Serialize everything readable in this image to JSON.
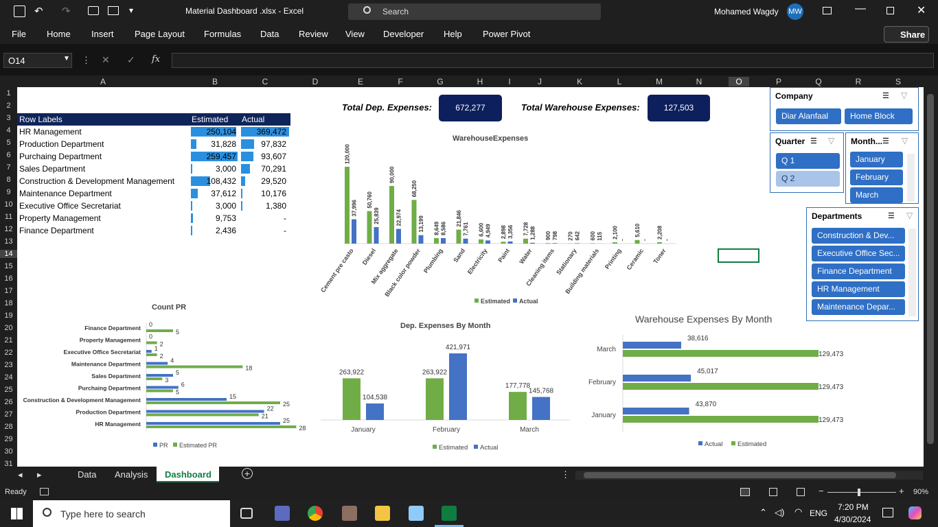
{
  "titlebar": {
    "filename": "Material Dashboard .xlsx",
    "app": "Excel",
    "search": "Search",
    "user": "Mohamed Wagdy",
    "initials": "MW"
  },
  "menu": [
    "File",
    "Home",
    "Insert",
    "Page Layout",
    "Formulas",
    "Data",
    "Review",
    "View",
    "Developer",
    "Help",
    "Power Pivot"
  ],
  "share": "Share",
  "namebox": "O14",
  "fx": "fx",
  "columns": [
    "A",
    "B",
    "C",
    "D",
    "E",
    "F",
    "G",
    "H",
    "I",
    "J",
    "K",
    "L",
    "M",
    "N",
    "O",
    "P",
    "Q",
    "R",
    "S"
  ],
  "rows": [
    "1",
    "2",
    "3",
    "4",
    "5",
    "6",
    "7",
    "8",
    "9",
    "10",
    "11",
    "12",
    "13",
    "14",
    "15",
    "16",
    "17",
    "18",
    "19",
    "20",
    "21",
    "22",
    "23",
    "24",
    "25",
    "26",
    "27",
    "28",
    "29",
    "30",
    "31"
  ],
  "pivot": {
    "headers": [
      "Row Labels",
      "Estimated",
      "Actual"
    ],
    "rows": [
      {
        "label": "HR Management",
        "estimated": "250,104",
        "actual": "369,472",
        "e": 250104,
        "a": 369472
      },
      {
        "label": "Production Department",
        "estimated": "31,828",
        "actual": "97,832",
        "e": 31828,
        "a": 97832
      },
      {
        "label": "Purchaing Department",
        "estimated": "259,457",
        "actual": "93,607",
        "e": 259457,
        "a": 93607
      },
      {
        "label": "Sales Department",
        "estimated": "3,000",
        "actual": "70,291",
        "e": 3000,
        "a": 70291
      },
      {
        "label": "Construction & Development Management",
        "estimated": "108,432",
        "actual": "29,520",
        "e": 108432,
        "a": 29520
      },
      {
        "label": "Maintenance Department",
        "estimated": "37,612",
        "actual": "10,176",
        "e": 37612,
        "a": 10176
      },
      {
        "label": "Executive Office Secretariat",
        "estimated": "3,000",
        "actual": "1,380",
        "e": 3000,
        "a": 1380
      },
      {
        "label": "Property Management",
        "estimated": "9,753",
        "actual": "-",
        "e": 9753,
        "a": 0
      },
      {
        "label": "Finance Department",
        "estimated": "2,436",
        "actual": "-",
        "e": 2436,
        "a": 0
      }
    ]
  },
  "kpis": {
    "dep_label": "Total Dep. Expenses:",
    "dep_value": "672,277",
    "wh_label": "Total Warehouse Expenses:",
    "wh_value": "127,503"
  },
  "slicers": {
    "company": {
      "title": "Company",
      "items": [
        "Diar Alanfaal",
        "Home Block"
      ]
    },
    "quarter": {
      "title": "Quarter",
      "items": [
        "Q 1",
        "Q 2"
      ]
    },
    "month": {
      "title": "Month...",
      "items": [
        "January",
        "February",
        "March"
      ]
    },
    "departments": {
      "title": "Departments",
      "items": [
        "Construction & Dev...",
        "Executive Office Sec...",
        "Finance Department",
        "HR Management",
        "Maintenance Depar..."
      ]
    }
  },
  "sheet_tabs": [
    "Data",
    "Analysis",
    "Dashboard"
  ],
  "status": {
    "ready": "Ready",
    "zoom": "90%"
  },
  "taskbar": {
    "search": "Type here to search",
    "lang": "ENG",
    "time": "7:20 PM",
    "date": "4/30/2024"
  },
  "colors": {
    "green": "#70ad47",
    "blue": "#4472c4",
    "navy": "#0f2459",
    "databar": "#2b8fe0"
  },
  "chart_data": [
    {
      "type": "bar",
      "title": "WarehouseExpenses",
      "categories": [
        "Cement pre casto",
        "Diesel",
        "Mix aggregate",
        "Black color powder",
        "Plumbing",
        "Sand",
        "Electricity",
        "Paint",
        "Water",
        "Cleaning items",
        "Stationary",
        "Building materials",
        "Printing",
        "Ceramic",
        "Toner"
      ],
      "series": [
        {
          "name": "Estimated",
          "values": [
            120000,
            50760,
            90000,
            68250,
            8649,
            21846,
            6600,
            2898,
            7728,
            900,
            270,
            600,
            2100,
            5610,
            2208
          ],
          "labels": [
            "120,000",
            "50,760",
            "90,000",
            "68,250",
            "8,649",
            "21,846",
            "6,600",
            "2,898",
            "7,728",
            "900",
            "270",
            "600",
            "2,100",
            "5,610",
            "2,208"
          ]
        },
        {
          "name": "Actual",
          "values": [
            37996,
            25839,
            22974,
            13199,
            8586,
            7761,
            4949,
            3356,
            1288,
            798,
            642,
            115,
            0,
            0,
            0
          ],
          "labels": [
            "37,996",
            "25,839",
            "22,974",
            "13,199",
            "8,586",
            "7,761",
            "4,949",
            "3,356",
            "1,288",
            "798",
            "642",
            "115",
            "-",
            "-",
            "-"
          ]
        }
      ],
      "ylim": [
        0,
        120000
      ],
      "legend": "bottom"
    },
    {
      "type": "bar",
      "title": "Count PR",
      "orientation": "horizontal",
      "categories": [
        "Finance Department",
        "Property Management",
        "Executive Office Secretariat",
        "Maintenance Department",
        "Sales Department",
        "Purchaing Department",
        "Construction & Development Management",
        "Production Department",
        "HR Management"
      ],
      "series": [
        {
          "name": "PR",
          "values": [
            0,
            0,
            1,
            4,
            5,
            6,
            15,
            22,
            25
          ]
        },
        {
          "name": "Estimated PR",
          "values": [
            5,
            2,
            2,
            18,
            3,
            5,
            25,
            21,
            28
          ]
        }
      ],
      "legend": "bottom"
    },
    {
      "type": "bar",
      "title": "Dep. Expenses By Month",
      "categories": [
        "January",
        "February",
        "March"
      ],
      "series": [
        {
          "name": "Estimated",
          "values": [
            263922,
            263922,
            177778
          ],
          "labels": [
            "263,922",
            "263,922",
            "177,778"
          ]
        },
        {
          "name": "Actual",
          "values": [
            104538,
            421971,
            145768
          ],
          "labels": [
            "104,538",
            "421,971",
            "145,768"
          ]
        }
      ],
      "legend": "bottom"
    },
    {
      "type": "bar",
      "title": "Warehouse Expenses By Month",
      "orientation": "horizontal",
      "categories": [
        "March",
        "February",
        "January"
      ],
      "series": [
        {
          "name": "Actual",
          "values": [
            38616,
            45017,
            43870
          ],
          "labels": [
            "38,616",
            "45,017",
            "43,870"
          ]
        },
        {
          "name": "Estimated",
          "values": [
            129473,
            129473,
            129473
          ],
          "labels": [
            "129,473",
            "129,473",
            "129,473"
          ]
        }
      ],
      "legend": "bottom"
    }
  ]
}
